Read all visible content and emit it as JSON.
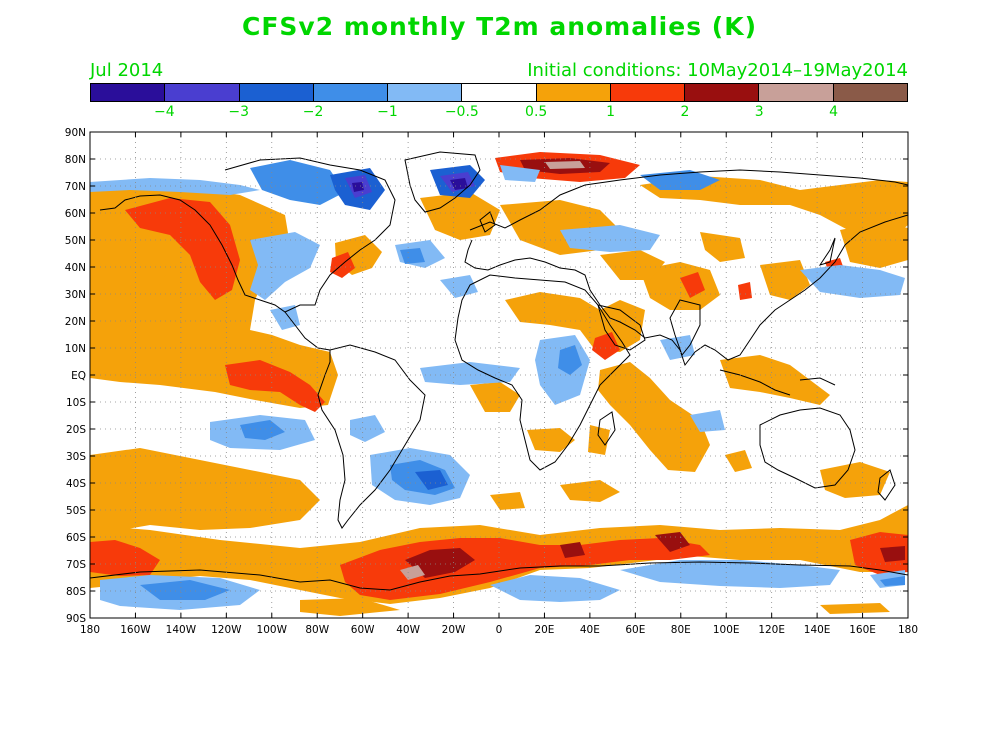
{
  "title": "CFSv2 monthly T2m anomalies (K)",
  "subtitle_left": "Jul 2014",
  "subtitle_right": "Initial conditions: 10May2014–19May2014",
  "colorbar": {
    "colors": [
      "#2a0e9a",
      "#4a3ed0",
      "#1b60d2",
      "#3f8ee8",
      "#82baf5",
      "#ffffff",
      "#f5a20a",
      "#f73a0a",
      "#990f0f",
      "#c8a099",
      "#8a5a48"
    ],
    "labels": [
      "−4",
      "−3",
      "−2",
      "−1",
      "−0.5",
      "0.5",
      "1",
      "2",
      "3",
      "4"
    ]
  },
  "axes": {
    "lat_labels": [
      "90N",
      "80N",
      "70N",
      "60N",
      "50N",
      "40N",
      "30N",
      "20N",
      "10N",
      "EQ",
      "10S",
      "20S",
      "30S",
      "40S",
      "50S",
      "60S",
      "70S",
      "80S",
      "90S"
    ],
    "lon_labels": [
      "180",
      "160W",
      "140W",
      "120W",
      "100W",
      "80W",
      "60W",
      "40W",
      "20W",
      "0",
      "20E",
      "40E",
      "60E",
      "80E",
      "100E",
      "120E",
      "140E",
      "160E",
      "180"
    ]
  },
  "anomaly_regions": [
    {
      "name": "NE Pacific warm",
      "level": 1,
      "lon": -140,
      "lat": 35
    },
    {
      "name": "E Pacific strong warm",
      "level": 2,
      "lon": -125,
      "lat": 55
    },
    {
      "name": "Equatorial Pacific warm",
      "level": 2,
      "lon": -100,
      "lat": 0
    },
    {
      "name": "South Pacific warm",
      "level": 1,
      "lon": -150,
      "lat": -40
    },
    {
      "name": "South Atlantic cool",
      "level": -1,
      "lon": -30,
      "lat": -38
    },
    {
      "name": "Southern Ocean warm belt",
      "level": 2,
      "lon": -20,
      "lat": -65
    },
    {
      "name": "Antarctic cool",
      "level": -1,
      "lon": -150,
      "lat": -82
    },
    {
      "name": "Greenland cold",
      "level": -3,
      "lon": -30,
      "lat": 73
    },
    {
      "name": "Arctic Siberia warm",
      "level": 3,
      "lon": 50,
      "lat": 79
    },
    {
      "name": "Indian Ocean warm",
      "level": 1,
      "lon": 65,
      "lat": -12
    }
  ]
}
